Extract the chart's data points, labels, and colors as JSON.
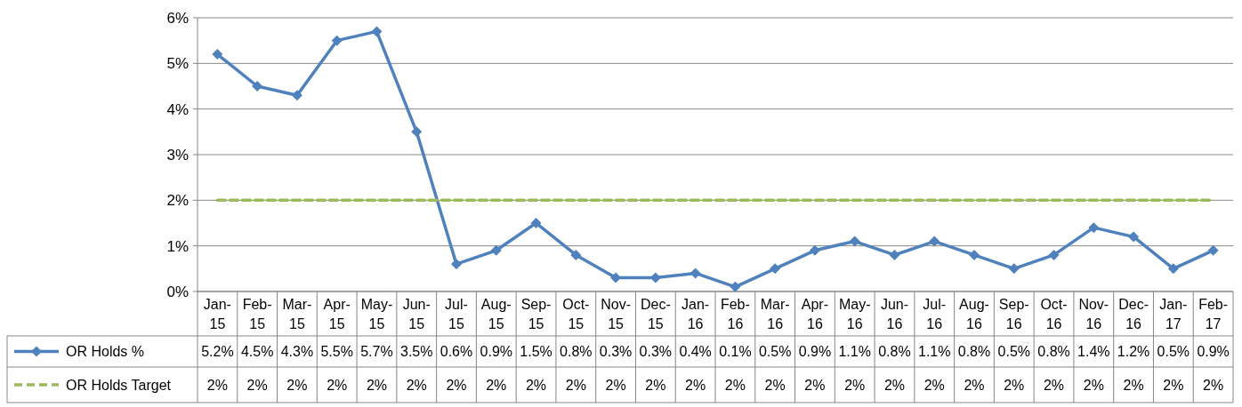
{
  "chart_data": {
    "type": "line",
    "categories": [
      "Jan-15",
      "Feb-15",
      "Mar-15",
      "Apr-15",
      "May-15",
      "Jun-15",
      "Jul-15",
      "Aug-15",
      "Sep-15",
      "Oct-15",
      "Nov-15",
      "Dec-15",
      "Jan-16",
      "Feb-16",
      "Mar-16",
      "Apr-16",
      "May-16",
      "Jun-16",
      "Jul-16",
      "Aug-16",
      "Sep-16",
      "Oct-16",
      "Nov-16",
      "Dec-16",
      "Jan-17",
      "Feb-17"
    ],
    "series": [
      {
        "name": "OR Holds %",
        "color": "#4f81bd",
        "marker": "diamond",
        "line_style": "solid",
        "values": [
          5.2,
          4.5,
          4.3,
          5.5,
          5.7,
          3.5,
          0.6,
          0.9,
          1.5,
          0.8,
          0.3,
          0.3,
          0.4,
          0.1,
          0.5,
          0.9,
          1.1,
          0.8,
          1.1,
          0.8,
          0.5,
          0.8,
          1.4,
          1.2,
          0.5,
          0.9
        ],
        "value_labels": [
          "5.2%",
          "4.5%",
          "4.3%",
          "5.5%",
          "5.7%",
          "3.5%",
          "0.6%",
          "0.9%",
          "1.5%",
          "0.8%",
          "0.3%",
          "0.3%",
          "0.4%",
          "0.1%",
          "0.5%",
          "0.9%",
          "1.1%",
          "0.8%",
          "1.1%",
          "0.8%",
          "0.5%",
          "0.8%",
          "1.4%",
          "1.2%",
          "0.5%",
          "0.9%"
        ]
      },
      {
        "name": "OR Holds Target",
        "color": "#9bbb59",
        "marker": "none",
        "line_style": "dashed",
        "values": [
          2,
          2,
          2,
          2,
          2,
          2,
          2,
          2,
          2,
          2,
          2,
          2,
          2,
          2,
          2,
          2,
          2,
          2,
          2,
          2,
          2,
          2,
          2,
          2,
          2,
          2
        ],
        "value_labels": [
          "2%",
          "2%",
          "2%",
          "2%",
          "2%",
          "2%",
          "2%",
          "2%",
          "2%",
          "2%",
          "2%",
          "2%",
          "2%",
          "2%",
          "2%",
          "2%",
          "2%",
          "2%",
          "2%",
          "2%",
          "2%",
          "2%",
          "2%",
          "2%",
          "2%",
          "2%"
        ]
      }
    ],
    "ylim": [
      0,
      6
    ],
    "yticks": [
      {
        "value": 0,
        "label": "0%"
      },
      {
        "value": 1,
        "label": "1%"
      },
      {
        "value": 2,
        "label": "2%"
      },
      {
        "value": 3,
        "label": "3%"
      },
      {
        "value": 4,
        "label": "4%"
      },
      {
        "value": 5,
        "label": "5%"
      },
      {
        "value": 6,
        "label": "6%"
      }
    ],
    "grid": "y",
    "legend": "bottom"
  }
}
